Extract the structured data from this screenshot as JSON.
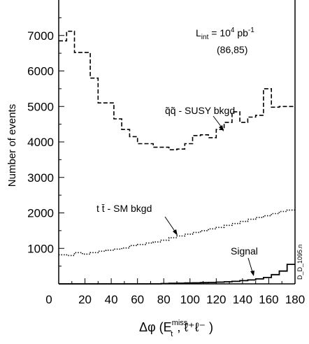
{
  "chart_data": {
    "type": "step-histogram",
    "xlabel": "Δφ  (E",
    "xlabel_sup": "miss",
    "xlabel_sub": "t",
    "xlabel_tail": ", ℓ⁺ℓ⁻ )",
    "ylabel": "Number of events",
    "xlim": [
      0,
      180
    ],
    "ylim": [
      0,
      8000
    ],
    "xticks": [
      0,
      20,
      40,
      60,
      80,
      100,
      120,
      140,
      160,
      180
    ],
    "yticks": [
      1000,
      2000,
      3000,
      4000,
      5000,
      6000,
      7000
    ],
    "bin_width": 6,
    "series": [
      {
        "key": "susy",
        "style": "dashed",
        "values": [
          6850,
          7120,
          6520,
          6520,
          5800,
          5100,
          5100,
          4650,
          4350,
          4150,
          3950,
          3950,
          3850,
          3850,
          3780,
          3800,
          3950,
          4180,
          4200,
          4120,
          4350,
          4550,
          4850,
          4550,
          4700,
          4750,
          5500,
          4980,
          5000,
          5000
        ]
      },
      {
        "key": "ttbar",
        "style": "dotted",
        "values": [
          820,
          800,
          880,
          840,
          880,
          920,
          950,
          980,
          1010,
          1080,
          1110,
          1150,
          1180,
          1230,
          1300,
          1350,
          1400,
          1450,
          1500,
          1550,
          1590,
          1650,
          1700,
          1760,
          1820,
          1870,
          1920,
          1980,
          2040,
          2080
        ]
      },
      {
        "key": "signal",
        "style": "solid",
        "values": [
          0,
          0,
          0,
          0,
          0,
          0,
          0,
          0,
          0,
          0,
          0,
          0,
          0,
          10,
          15,
          20,
          25,
          30,
          35,
          40,
          50,
          60,
          70,
          90,
          110,
          140,
          180,
          260,
          360,
          550
        ]
      }
    ]
  },
  "annotations": {
    "lumi_main": "L",
    "lumi_sub": "int",
    "lumi_eq": " = 10",
    "lumi_exp": "4",
    "lumi_unit": " pb",
    "lumi_unit_exp": "-1",
    "mass_point": "(86,85)",
    "susy_label": "q̃q̃ - SUSY bkgd",
    "ttbar_label": "t t̄ - SM bkgd",
    "signal_label": "Signal",
    "figure_id": "D_D_1095.n"
  }
}
